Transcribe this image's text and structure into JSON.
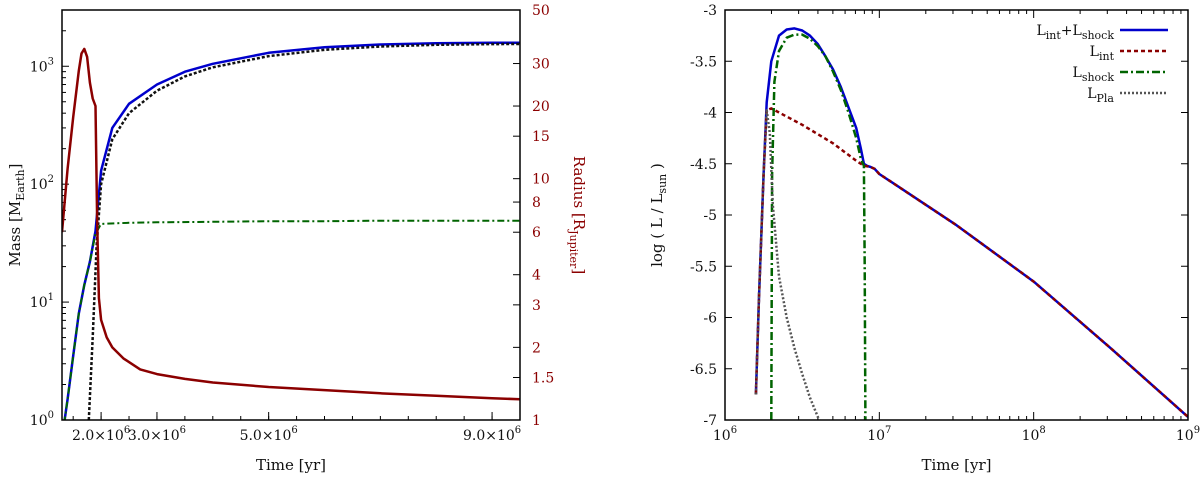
{
  "chart_data": [
    {
      "type": "line",
      "xlabel": "Time [yr]",
      "ylabel": "Mass [M",
      "ylabel_sub": "Earth",
      "ylabel_close": "]",
      "y2label": "Radius [R",
      "y2label_sub": "Jupiter",
      "y2label_close": "]",
      "xlim": [
        1.3,
        9.5
      ],
      "x_tick_positions": [
        2.0,
        3.0,
        5.0,
        9.0
      ],
      "x_tick_labels": [
        "2.0×10",
        "3.0×10",
        "5.0×10",
        "9.0×10"
      ],
      "x_tick_exp": "6",
      "y_scale": "log",
      "ylim": [
        1,
        3000
      ],
      "y_ticks": [
        {
          "v": 1,
          "m": "10",
          "e": "0"
        },
        {
          "v": 10,
          "m": "10",
          "e": "1"
        },
        {
          "v": 100,
          "m": "10",
          "e": "2"
        },
        {
          "v": 1000,
          "m": "10",
          "e": "3"
        }
      ],
      "y2_scale": "log",
      "y2lim": [
        1,
        50
      ],
      "y2_ticks": [
        "1",
        "1.5",
        "2",
        "3",
        "4",
        "6",
        "8",
        "10",
        "15",
        "20",
        "30",
        "50"
      ],
      "series": [
        {
          "axis": "left",
          "color": "#0000cc",
          "dash": "",
          "width": 2.5,
          "x": [
            1.3,
            1.4,
            1.5,
            1.6,
            1.7,
            1.8,
            1.9,
            2.0,
            2.2,
            2.5,
            3.0,
            3.5,
            4.0,
            5.0,
            6.0,
            7.0,
            8.0,
            9.0,
            9.5
          ],
          "y": [
            0.7,
            1.5,
            3.5,
            8,
            14,
            22,
            40,
            130,
            300,
            480,
            700,
            900,
            1050,
            1300,
            1450,
            1530,
            1570,
            1580,
            1580
          ]
        },
        {
          "axis": "left",
          "color": "#111111",
          "dash": "3,2",
          "width": 2.5,
          "x": [
            1.78,
            1.85,
            1.92,
            2.0,
            2.2,
            2.5,
            3.0,
            3.5,
            4.0,
            5.0,
            6.0,
            7.0,
            8.0,
            9.0,
            9.5
          ],
          "y": [
            1.0,
            5,
            30,
            100,
            240,
            400,
            620,
            820,
            980,
            1220,
            1380,
            1470,
            1520,
            1540,
            1545
          ]
        },
        {
          "axis": "left",
          "color": "#006400",
          "dash": "7,3,2,3",
          "width": 2,
          "x": [
            1.3,
            1.4,
            1.5,
            1.6,
            1.7,
            1.8,
            1.9,
            2.0,
            2.5,
            3.0,
            4.0,
            5.0,
            6.0,
            7.0,
            8.0,
            9.0,
            9.5
          ],
          "y": [
            0.7,
            1.5,
            3.5,
            8,
            14,
            22,
            38,
            46,
            47,
            47.5,
            48,
            48.5,
            48.5,
            49,
            49,
            49,
            49
          ]
        },
        {
          "axis": "right",
          "color": "#8b0000",
          "dash": "",
          "width": 2.5,
          "x": [
            1.3,
            1.4,
            1.5,
            1.6,
            1.65,
            1.7,
            1.75,
            1.8,
            1.85,
            1.9,
            1.93,
            1.96,
            2.0,
            2.1,
            2.2,
            2.4,
            2.7,
            3.0,
            3.5,
            4.0,
            5.0,
            6.0,
            7.0,
            8.0,
            9.0,
            9.5
          ],
          "y": [
            6.0,
            11,
            18,
            28,
            33,
            34.5,
            32,
            25,
            21.5,
            20,
            6.5,
            3.2,
            2.6,
            2.2,
            2.0,
            1.8,
            1.62,
            1.55,
            1.48,
            1.43,
            1.37,
            1.33,
            1.29,
            1.26,
            1.23,
            1.22
          ]
        }
      ]
    },
    {
      "type": "line",
      "xlabel": "Time [yr]",
      "ylabel": "log ( L / L",
      "ylabel_sub": "sun",
      "ylabel_close": " )",
      "x_scale": "log",
      "xlim": [
        6,
        9
      ],
      "x_ticks": [
        {
          "v": 6,
          "m": "10",
          "e": "6"
        },
        {
          "v": 7,
          "m": "10",
          "e": "7"
        },
        {
          "v": 8,
          "m": "10",
          "e": "8"
        },
        {
          "v": 9,
          "m": "10",
          "e": "9"
        }
      ],
      "ylim": [
        -7,
        -3
      ],
      "y_ticks": [
        "-3",
        "-3.5",
        "-4",
        "-4.5",
        "-5",
        "-5.5",
        "-6",
        "-6.5",
        "-7"
      ],
      "legend_position": "top-right",
      "series": [
        {
          "name": "L",
          "name_sub": "int",
          "name_mid": "+L",
          "name_sub2": "shock",
          "color": "#0000cc",
          "dash": "",
          "width": 2.5,
          "x": [
            6.2,
            6.22,
            6.25,
            6.27,
            6.3,
            6.35,
            6.4,
            6.45,
            6.5,
            6.55,
            6.6,
            6.65,
            6.7,
            6.75,
            6.8,
            6.85,
            6.88,
            6.9,
            6.92,
            6.94,
            6.97,
            7.0,
            7.5,
            8.0,
            8.5,
            9.0
          ],
          "y": [
            -6.75,
            -5.8,
            -4.6,
            -3.9,
            -3.5,
            -3.25,
            -3.19,
            -3.18,
            -3.2,
            -3.25,
            -3.33,
            -3.45,
            -3.58,
            -3.75,
            -3.95,
            -4.15,
            -4.35,
            -4.5,
            -4.52,
            -4.53,
            -4.55,
            -4.6,
            -5.1,
            -5.65,
            -6.3,
            -6.97
          ]
        },
        {
          "name": "L",
          "name_sub": "int",
          "color": "#8b0000",
          "dash": "4,3",
          "width": 2.5,
          "x": [
            6.2,
            6.22,
            6.25,
            6.27,
            6.3,
            6.5,
            6.7,
            6.85,
            6.9,
            6.94,
            6.97,
            7.0,
            7.5,
            8.0,
            8.5,
            9.0
          ],
          "y": [
            -6.75,
            -5.8,
            -4.6,
            -3.98,
            -3.96,
            -4.12,
            -4.3,
            -4.47,
            -4.52,
            -4.53,
            -4.55,
            -4.6,
            -5.1,
            -5.65,
            -6.3,
            -6.97
          ]
        },
        {
          "name": "L",
          "name_sub": "shock",
          "color": "#006400",
          "dash": "8,3,2,3",
          "width": 2.5,
          "x": [
            6.3,
            6.305,
            6.32,
            6.35,
            6.4,
            6.45,
            6.5,
            6.55,
            6.6,
            6.65,
            6.7,
            6.75,
            6.8,
            6.85,
            6.88,
            6.9,
            6.905,
            6.91
          ],
          "y": [
            -7.0,
            -4.6,
            -3.7,
            -3.4,
            -3.27,
            -3.24,
            -3.24,
            -3.28,
            -3.35,
            -3.45,
            -3.6,
            -3.78,
            -4.0,
            -4.25,
            -4.45,
            -4.52,
            -5.5,
            -7.0
          ]
        },
        {
          "name": "L",
          "name_sub": "Pla",
          "color": "#555555",
          "dash": "2,2",
          "width": 2.5,
          "x": [
            6.2,
            6.22,
            6.25,
            6.27,
            6.29,
            6.31,
            6.35,
            6.4,
            6.45,
            6.5,
            6.55,
            6.61
          ],
          "y": [
            -6.75,
            -5.8,
            -4.6,
            -3.98,
            -4.2,
            -4.9,
            -5.6,
            -6.0,
            -6.3,
            -6.55,
            -6.78,
            -7.0
          ]
        }
      ]
    }
  ]
}
